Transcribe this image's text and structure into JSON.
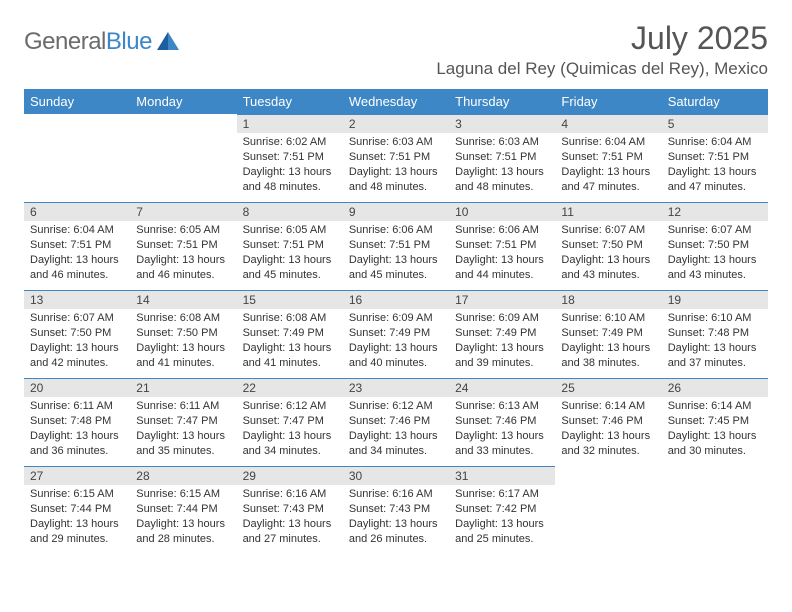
{
  "brand": {
    "part1": "General",
    "part2": "Blue"
  },
  "title": "July 2025",
  "location": "Laguna del Rey (Quimicas del Rey), Mexico",
  "colors": {
    "header_bg": "#3d87c7",
    "header_text": "#ffffff",
    "daynum_bg": "#e6e6e6",
    "rule": "#3d87c7",
    "body_text": "#333333",
    "title_text": "#555555"
  },
  "typography": {
    "title_fontsize": 32,
    "location_fontsize": 17,
    "dayhead_fontsize": 13,
    "daynum_fontsize": 12,
    "cell_fontsize": 11
  },
  "day_headers": [
    "Sunday",
    "Monday",
    "Tuesday",
    "Wednesday",
    "Thursday",
    "Friday",
    "Saturday"
  ],
  "weeks": [
    [
      null,
      null,
      {
        "n": "1",
        "sr": "Sunrise: 6:02 AM",
        "ss": "Sunset: 7:51 PM",
        "dl1": "Daylight: 13 hours",
        "dl2": "and 48 minutes."
      },
      {
        "n": "2",
        "sr": "Sunrise: 6:03 AM",
        "ss": "Sunset: 7:51 PM",
        "dl1": "Daylight: 13 hours",
        "dl2": "and 48 minutes."
      },
      {
        "n": "3",
        "sr": "Sunrise: 6:03 AM",
        "ss": "Sunset: 7:51 PM",
        "dl1": "Daylight: 13 hours",
        "dl2": "and 48 minutes."
      },
      {
        "n": "4",
        "sr": "Sunrise: 6:04 AM",
        "ss": "Sunset: 7:51 PM",
        "dl1": "Daylight: 13 hours",
        "dl2": "and 47 minutes."
      },
      {
        "n": "5",
        "sr": "Sunrise: 6:04 AM",
        "ss": "Sunset: 7:51 PM",
        "dl1": "Daylight: 13 hours",
        "dl2": "and 47 minutes."
      }
    ],
    [
      {
        "n": "6",
        "sr": "Sunrise: 6:04 AM",
        "ss": "Sunset: 7:51 PM",
        "dl1": "Daylight: 13 hours",
        "dl2": "and 46 minutes."
      },
      {
        "n": "7",
        "sr": "Sunrise: 6:05 AM",
        "ss": "Sunset: 7:51 PM",
        "dl1": "Daylight: 13 hours",
        "dl2": "and 46 minutes."
      },
      {
        "n": "8",
        "sr": "Sunrise: 6:05 AM",
        "ss": "Sunset: 7:51 PM",
        "dl1": "Daylight: 13 hours",
        "dl2": "and 45 minutes."
      },
      {
        "n": "9",
        "sr": "Sunrise: 6:06 AM",
        "ss": "Sunset: 7:51 PM",
        "dl1": "Daylight: 13 hours",
        "dl2": "and 45 minutes."
      },
      {
        "n": "10",
        "sr": "Sunrise: 6:06 AM",
        "ss": "Sunset: 7:51 PM",
        "dl1": "Daylight: 13 hours",
        "dl2": "and 44 minutes."
      },
      {
        "n": "11",
        "sr": "Sunrise: 6:07 AM",
        "ss": "Sunset: 7:50 PM",
        "dl1": "Daylight: 13 hours",
        "dl2": "and 43 minutes."
      },
      {
        "n": "12",
        "sr": "Sunrise: 6:07 AM",
        "ss": "Sunset: 7:50 PM",
        "dl1": "Daylight: 13 hours",
        "dl2": "and 43 minutes."
      }
    ],
    [
      {
        "n": "13",
        "sr": "Sunrise: 6:07 AM",
        "ss": "Sunset: 7:50 PM",
        "dl1": "Daylight: 13 hours",
        "dl2": "and 42 minutes."
      },
      {
        "n": "14",
        "sr": "Sunrise: 6:08 AM",
        "ss": "Sunset: 7:50 PM",
        "dl1": "Daylight: 13 hours",
        "dl2": "and 41 minutes."
      },
      {
        "n": "15",
        "sr": "Sunrise: 6:08 AM",
        "ss": "Sunset: 7:49 PM",
        "dl1": "Daylight: 13 hours",
        "dl2": "and 41 minutes."
      },
      {
        "n": "16",
        "sr": "Sunrise: 6:09 AM",
        "ss": "Sunset: 7:49 PM",
        "dl1": "Daylight: 13 hours",
        "dl2": "and 40 minutes."
      },
      {
        "n": "17",
        "sr": "Sunrise: 6:09 AM",
        "ss": "Sunset: 7:49 PM",
        "dl1": "Daylight: 13 hours",
        "dl2": "and 39 minutes."
      },
      {
        "n": "18",
        "sr": "Sunrise: 6:10 AM",
        "ss": "Sunset: 7:49 PM",
        "dl1": "Daylight: 13 hours",
        "dl2": "and 38 minutes."
      },
      {
        "n": "19",
        "sr": "Sunrise: 6:10 AM",
        "ss": "Sunset: 7:48 PM",
        "dl1": "Daylight: 13 hours",
        "dl2": "and 37 minutes."
      }
    ],
    [
      {
        "n": "20",
        "sr": "Sunrise: 6:11 AM",
        "ss": "Sunset: 7:48 PM",
        "dl1": "Daylight: 13 hours",
        "dl2": "and 36 minutes."
      },
      {
        "n": "21",
        "sr": "Sunrise: 6:11 AM",
        "ss": "Sunset: 7:47 PM",
        "dl1": "Daylight: 13 hours",
        "dl2": "and 35 minutes."
      },
      {
        "n": "22",
        "sr": "Sunrise: 6:12 AM",
        "ss": "Sunset: 7:47 PM",
        "dl1": "Daylight: 13 hours",
        "dl2": "and 34 minutes."
      },
      {
        "n": "23",
        "sr": "Sunrise: 6:12 AM",
        "ss": "Sunset: 7:46 PM",
        "dl1": "Daylight: 13 hours",
        "dl2": "and 34 minutes."
      },
      {
        "n": "24",
        "sr": "Sunrise: 6:13 AM",
        "ss": "Sunset: 7:46 PM",
        "dl1": "Daylight: 13 hours",
        "dl2": "and 33 minutes."
      },
      {
        "n": "25",
        "sr": "Sunrise: 6:14 AM",
        "ss": "Sunset: 7:46 PM",
        "dl1": "Daylight: 13 hours",
        "dl2": "and 32 minutes."
      },
      {
        "n": "26",
        "sr": "Sunrise: 6:14 AM",
        "ss": "Sunset: 7:45 PM",
        "dl1": "Daylight: 13 hours",
        "dl2": "and 30 minutes."
      }
    ],
    [
      {
        "n": "27",
        "sr": "Sunrise: 6:15 AM",
        "ss": "Sunset: 7:44 PM",
        "dl1": "Daylight: 13 hours",
        "dl2": "and 29 minutes."
      },
      {
        "n": "28",
        "sr": "Sunrise: 6:15 AM",
        "ss": "Sunset: 7:44 PM",
        "dl1": "Daylight: 13 hours",
        "dl2": "and 28 minutes."
      },
      {
        "n": "29",
        "sr": "Sunrise: 6:16 AM",
        "ss": "Sunset: 7:43 PM",
        "dl1": "Daylight: 13 hours",
        "dl2": "and 27 minutes."
      },
      {
        "n": "30",
        "sr": "Sunrise: 6:16 AM",
        "ss": "Sunset: 7:43 PM",
        "dl1": "Daylight: 13 hours",
        "dl2": "and 26 minutes."
      },
      {
        "n": "31",
        "sr": "Sunrise: 6:17 AM",
        "ss": "Sunset: 7:42 PM",
        "dl1": "Daylight: 13 hours",
        "dl2": "and 25 minutes."
      },
      null,
      null
    ]
  ]
}
